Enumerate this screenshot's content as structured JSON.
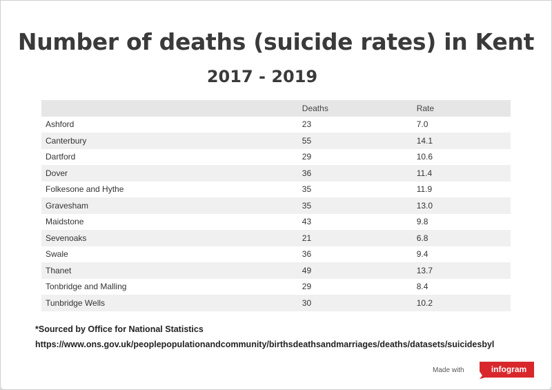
{
  "header": {
    "title": "Number of deaths (suicide rates) in Kent",
    "subtitle": "2017 - 2019"
  },
  "chart_data": {
    "type": "table",
    "title": "Number of deaths (suicide rates) in Kent",
    "subtitle": "2017 - 2019",
    "columns": [
      "",
      "Deaths",
      "Rate"
    ],
    "rows": [
      {
        "name": "Ashford",
        "deaths": "23",
        "rate": "7.0"
      },
      {
        "name": "Canterbury",
        "deaths": "55",
        "rate": "14.1"
      },
      {
        "name": "Dartford",
        "deaths": "29",
        "rate": "10.6"
      },
      {
        "name": "Dover",
        "deaths": "36",
        "rate": "11.4"
      },
      {
        "name": "Folkesone and Hythe",
        "deaths": "35",
        "rate": "11.9"
      },
      {
        "name": "Gravesham",
        "deaths": "35",
        "rate": "13.0"
      },
      {
        "name": "Maidstone",
        "deaths": "43",
        "rate": "9.8"
      },
      {
        "name": "Sevenoaks",
        "deaths": "21",
        "rate": "6.8"
      },
      {
        "name": "Swale",
        "deaths": "36",
        "rate": "9.4"
      },
      {
        "name": "Thanet",
        "deaths": "49",
        "rate": "13.7"
      },
      {
        "name": "Tonbridge and Malling",
        "deaths": "29",
        "rate": "8.4"
      },
      {
        "name": "Tunbridge Wells",
        "deaths": "30",
        "rate": "10.2"
      }
    ]
  },
  "footer": {
    "source": "*Sourced by Office for National Statistics",
    "url": "https://www.ons.gov.uk/peoplepopulationandcommunity/birthsdeathsandmarriages/deaths/datasets/suicidesbyl",
    "made_with": "Made with",
    "brand": "infogram"
  },
  "colors": {
    "brand": "#d8282c",
    "header_row": "#e6e6e6",
    "striped_row": "#f0f0f0"
  }
}
